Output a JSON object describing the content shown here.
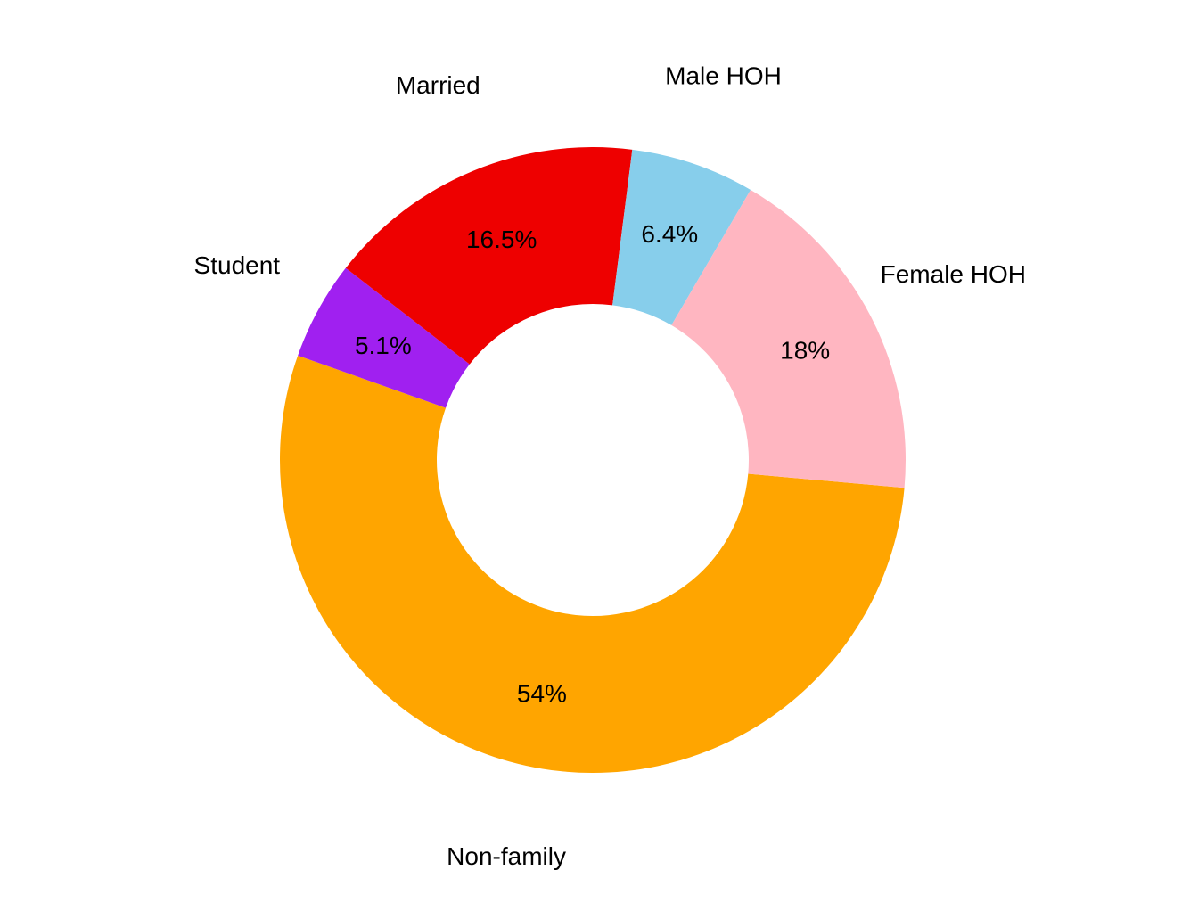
{
  "chart_data": {
    "type": "pie",
    "donut": true,
    "categories": [
      "Non-family",
      "Student",
      "Married",
      "Male HOH",
      "Female HOH"
    ],
    "values": [
      54,
      5.1,
      16.5,
      6.4,
      18
    ],
    "value_labels": [
      "54%",
      "5.1%",
      "16.5%",
      "6.4%",
      "18%"
    ],
    "colors": [
      "#FFA500",
      "#A020F0",
      "#EE0000",
      "#87CEEB",
      "#FFB6C1"
    ],
    "title": "",
    "legend": "none"
  }
}
